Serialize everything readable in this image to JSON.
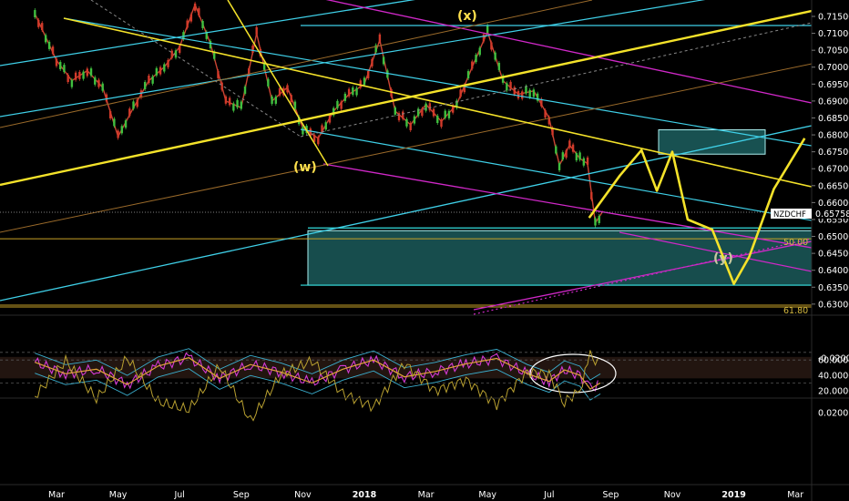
{
  "symbol_tag": "NZDCHF",
  "last_price": "0.6575​8",
  "last_price_text": "0.65758",
  "chart_data": {
    "type": "line",
    "title": "",
    "price_axis": {
      "ticks": [
        "0.71500",
        "0.71000",
        "0.70500",
        "0.70000",
        "0.69500",
        "0.69000",
        "0.68500",
        "0.68000",
        "0.67500",
        "0.67000",
        "0.66500",
        "0.66000",
        "0.65500",
        "0.65000",
        "0.64500",
        "0.64000",
        "0.63500",
        "0.63000"
      ],
      "range": [
        0.6297,
        0.7178
      ]
    },
    "oscillator1_axis": {
      "ticks": [
        "60.0000",
        "40.0000",
        "20.0000"
      ]
    },
    "oscillator2_axis": {
      "ticks": [
        "0.0200",
        "-0.0200"
      ]
    },
    "time_axis": {
      "labels": [
        "Mar",
        "May",
        "Jul",
        "Sep",
        "Nov",
        "2018",
        "Mar",
        "May",
        "Jul",
        "Sep",
        "Nov",
        "2019",
        "Mar"
      ]
    },
    "wave_labels": [
      "(x)",
      "(w)",
      "(y)"
    ],
    "fib_levels": [
      {
        "label": "50.00",
        "price": 0.6493
      },
      {
        "label": "61.80",
        "price": 0.6297
      }
    ],
    "target_zone": {
      "price_top": 0.6517,
      "price_bottom": 0.6356
    },
    "secondary_zone": {
      "price_top": 0.6815,
      "price_bottom": 0.6743
    },
    "price_series": {
      "name": "NZDCHF",
      "points": [
        [
          "Feb 2017",
          0.7158
        ],
        [
          "Mar 2017",
          0.702
        ],
        [
          "Mar 2017",
          0.696
        ],
        [
          "Apr 2017",
          0.699
        ],
        [
          "Apr 2017",
          0.694
        ],
        [
          "May 2017",
          0.6795
        ],
        [
          "May 2017",
          0.688
        ],
        [
          "Jun 2017",
          0.696
        ],
        [
          "Jun 2017",
          0.7
        ],
        [
          "Jul 2017",
          0.706
        ],
        [
          "Jul 2017",
          0.7185
        ],
        [
          "Aug 2017",
          0.707
        ],
        [
          "Aug 2017",
          0.69
        ],
        [
          "Sep 2017",
          0.688
        ],
        [
          "Sep 2017",
          0.71
        ],
        [
          "Oct 2017",
          0.69
        ],
        [
          "Oct 2017",
          0.694
        ],
        [
          "Nov 2017",
          0.682
        ],
        [
          "Nov 2017",
          0.679
        ],
        [
          "Dec 2017",
          0.687
        ],
        [
          "Dec 2017",
          0.692
        ],
        [
          "Jan 2018",
          0.695
        ],
        [
          "Jan 2018",
          0.708
        ],
        [
          "Feb 2018",
          0.687
        ],
        [
          "Feb 2018",
          0.683
        ],
        [
          "Mar 2018",
          0.689
        ],
        [
          "Mar 2018",
          0.684
        ],
        [
          "Apr 2018",
          0.689
        ],
        [
          "Apr 2018",
          0.7
        ],
        [
          "May 2018",
          0.7105
        ],
        [
          "May 2018",
          0.696
        ],
        [
          "Jun 2018",
          0.692
        ],
        [
          "Jun 2018",
          0.693
        ],
        [
          "Jul 2018",
          0.685
        ],
        [
          "Jul 2018",
          0.671
        ],
        [
          "Jul 2018",
          0.677
        ],
        [
          "Aug 2018",
          0.673
        ],
        [
          "Aug 2018",
          0.6715
        ],
        [
          "Aug 2018",
          0.654
        ],
        [
          "Aug 2018",
          0.6575
        ]
      ]
    },
    "projection_path": {
      "name": "projected wave",
      "points": [
        [
          "Aug 2018",
          0.6555
        ],
        [
          "Sep 2018",
          0.668
        ],
        [
          "Oct 2018",
          0.6755
        ],
        [
          "Oct 2018",
          0.6635
        ],
        [
          "Nov 2018",
          0.675
        ],
        [
          "Nov 2018",
          0.655
        ],
        [
          "Dec 2018",
          0.652
        ],
        [
          "Jan 2019",
          0.636
        ],
        [
          "Jan 2019",
          0.644
        ],
        [
          "Feb 2019",
          0.664
        ],
        [
          "Mar 2019",
          0.679
        ]
      ]
    },
    "rsi_series": {
      "points": [
        [
          "Feb 2017",
          57
        ],
        [
          "Mar 2017",
          42
        ],
        [
          "Apr 2017",
          48
        ],
        [
          "May 2017",
          28
        ],
        [
          "Jun 2017",
          52
        ],
        [
          "Jul 2017",
          63
        ],
        [
          "Aug 2017",
          36
        ],
        [
          "Sep 2017",
          54
        ],
        [
          "Oct 2017",
          44
        ],
        [
          "Nov 2017",
          30
        ],
        [
          "Dec 2017",
          48
        ],
        [
          "Jan 2018",
          60
        ],
        [
          "Feb 2018",
          38
        ],
        [
          "Mar 2018",
          45
        ],
        [
          "Apr 2018",
          55
        ],
        [
          "May 2018",
          62
        ],
        [
          "Jun 2018",
          42
        ],
        [
          "Jul 2018",
          32
        ],
        [
          "Jul 2018",
          47
        ],
        [
          "Aug 2018",
          40
        ],
        [
          "Aug 2018",
          22
        ],
        [
          "Aug 2018",
          30
        ]
      ]
    },
    "macd_series": {
      "points": [
        [
          "Feb 2017",
          0.008
        ],
        [
          "Mar 2017",
          -0.018
        ],
        [
          "Apr 2017",
          0.01
        ],
        [
          "May 2017",
          -0.02
        ],
        [
          "Jun 2017",
          0.012
        ],
        [
          "Jul 2017",
          0.018
        ],
        [
          "Aug 2017",
          -0.014
        ],
        [
          "Sep 2017",
          0.026
        ],
        [
          "Oct 2017",
          -0.008
        ],
        [
          "Nov 2017",
          -0.018
        ],
        [
          "Dec 2017",
          0.006
        ],
        [
          "Jan 2018",
          0.016
        ],
        [
          "Feb 2018",
          -0.016
        ],
        [
          "Mar 2018",
          0.004
        ],
        [
          "Apr 2018",
          -0.004
        ],
        [
          "May 2018",
          0.014
        ],
        [
          "Jun 2018",
          -0.01
        ],
        [
          "Jul 2018",
          -0.008
        ],
        [
          "Jul 2018",
          0.012
        ],
        [
          "Aug 2018",
          0.004
        ],
        [
          "Aug 2018",
          -0.022
        ],
        [
          "Aug 2018",
          -0.014
        ]
      ]
    }
  }
}
